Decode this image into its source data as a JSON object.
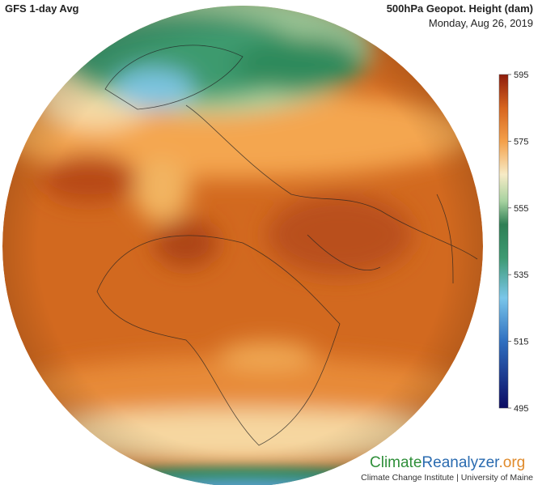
{
  "header": {
    "title": "GFS 1-day Avg",
    "variable": "500hPa Geopot. Height (dam)",
    "date": "Monday, Aug 26, 2019"
  },
  "colorbar": {
    "range": [
      495,
      595
    ],
    "ticks": [
      495,
      515,
      535,
      555,
      575,
      595
    ]
  },
  "logo": {
    "part1": "Climate",
    "part2": "Reanalyzer",
    "part3": ".org",
    "subtitle": "Climate Change Institute | University of Maine"
  }
}
